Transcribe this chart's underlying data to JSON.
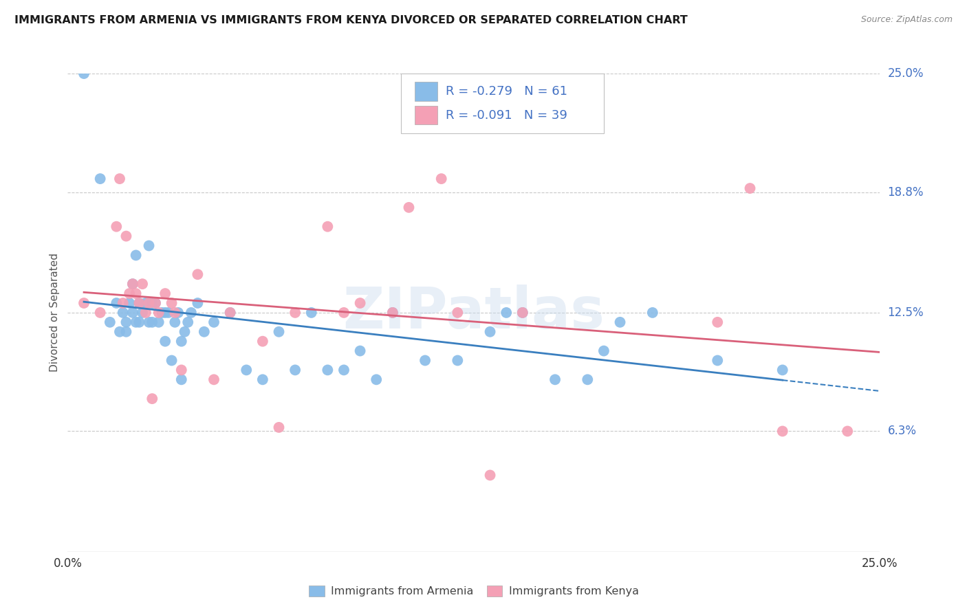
{
  "title": "IMMIGRANTS FROM ARMENIA VS IMMIGRANTS FROM KENYA DIVORCED OR SEPARATED CORRELATION CHART",
  "source": "Source: ZipAtlas.com",
  "ylabel": "Divorced or Separated",
  "xlim": [
    0.0,
    0.25
  ],
  "ylim": [
    0.0,
    0.25
  ],
  "ytick_labels": [
    "6.3%",
    "12.5%",
    "18.8%",
    "25.0%"
  ],
  "ytick_values": [
    0.063,
    0.125,
    0.188,
    0.25
  ],
  "xtick_labels": [
    "0.0%",
    "25.0%"
  ],
  "xtick_values": [
    0.0,
    0.25
  ],
  "background_color": "#ffffff",
  "watermark": "ZIPatlas",
  "armenia_color": "#89BCE8",
  "kenya_color": "#F4A0B5",
  "armenia_line_color": "#3A7FBF",
  "kenya_line_color": "#D9607A",
  "tick_color": "#4472C4",
  "grid_color": "#c8c8c8",
  "armenia_x": [
    0.005,
    0.01,
    0.013,
    0.015,
    0.016,
    0.017,
    0.018,
    0.018,
    0.019,
    0.02,
    0.02,
    0.021,
    0.021,
    0.022,
    0.022,
    0.023,
    0.024,
    0.025,
    0.025,
    0.026,
    0.026,
    0.027,
    0.028,
    0.029,
    0.03,
    0.03,
    0.031,
    0.032,
    0.033,
    0.034,
    0.035,
    0.035,
    0.036,
    0.037,
    0.038,
    0.04,
    0.042,
    0.045,
    0.05,
    0.055,
    0.06,
    0.065,
    0.07,
    0.075,
    0.08,
    0.085,
    0.09,
    0.095,
    0.1,
    0.11,
    0.12,
    0.13,
    0.135,
    0.14,
    0.15,
    0.16,
    0.165,
    0.17,
    0.18,
    0.2,
    0.22
  ],
  "armenia_y": [
    0.25,
    0.195,
    0.12,
    0.13,
    0.115,
    0.125,
    0.12,
    0.115,
    0.13,
    0.14,
    0.125,
    0.12,
    0.155,
    0.13,
    0.12,
    0.125,
    0.13,
    0.16,
    0.12,
    0.12,
    0.13,
    0.13,
    0.12,
    0.125,
    0.125,
    0.11,
    0.125,
    0.1,
    0.12,
    0.125,
    0.09,
    0.11,
    0.115,
    0.12,
    0.125,
    0.13,
    0.115,
    0.12,
    0.125,
    0.095,
    0.09,
    0.115,
    0.095,
    0.125,
    0.095,
    0.095,
    0.105,
    0.09,
    0.125,
    0.1,
    0.1,
    0.115,
    0.125,
    0.125,
    0.09,
    0.09,
    0.105,
    0.12,
    0.125,
    0.1,
    0.095
  ],
  "kenya_x": [
    0.005,
    0.01,
    0.015,
    0.016,
    0.017,
    0.018,
    0.019,
    0.02,
    0.021,
    0.022,
    0.023,
    0.024,
    0.025,
    0.026,
    0.027,
    0.028,
    0.03,
    0.032,
    0.033,
    0.035,
    0.04,
    0.045,
    0.05,
    0.06,
    0.065,
    0.07,
    0.08,
    0.085,
    0.09,
    0.1,
    0.105,
    0.115,
    0.12,
    0.13,
    0.14,
    0.2,
    0.21,
    0.22,
    0.24
  ],
  "kenya_y": [
    0.13,
    0.125,
    0.17,
    0.195,
    0.13,
    0.165,
    0.135,
    0.14,
    0.135,
    0.13,
    0.14,
    0.125,
    0.13,
    0.08,
    0.13,
    0.125,
    0.135,
    0.13,
    0.125,
    0.095,
    0.145,
    0.09,
    0.125,
    0.11,
    0.065,
    0.125,
    0.17,
    0.125,
    0.13,
    0.125,
    0.18,
    0.195,
    0.125,
    0.04,
    0.125,
    0.12,
    0.19,
    0.063,
    0.063
  ]
}
